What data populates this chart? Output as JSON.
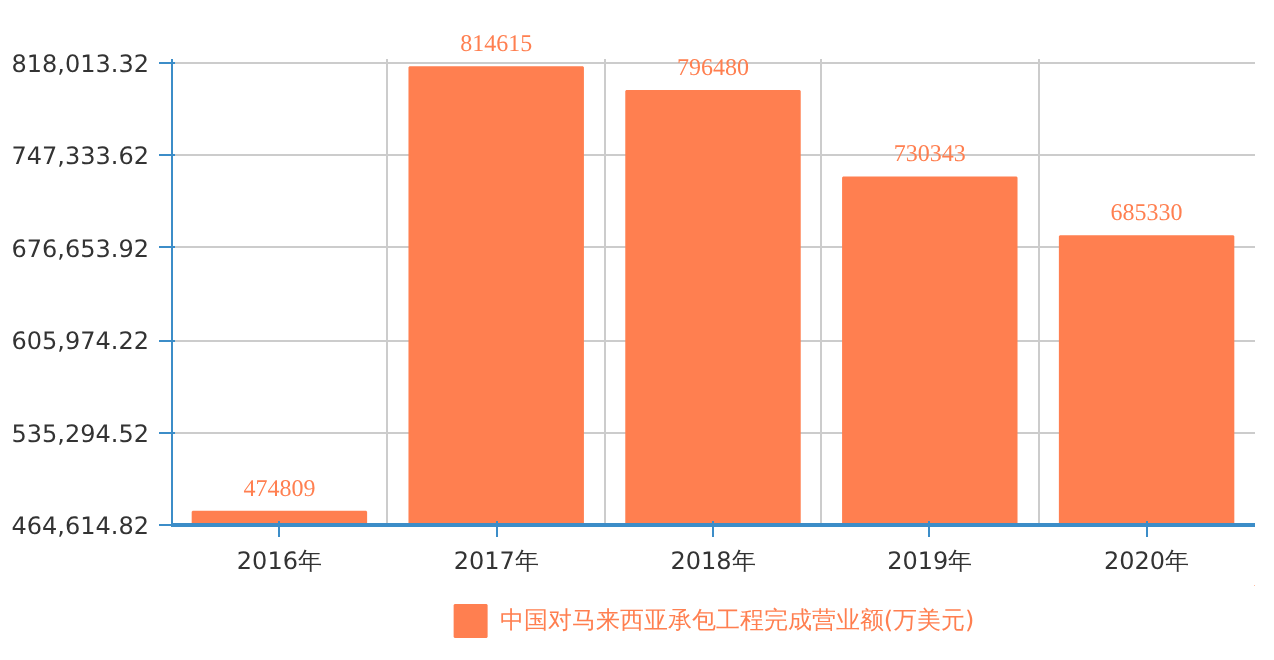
{
  "chart_data": {
    "type": "bar",
    "categories": [
      "2016年",
      "2017年",
      "2018年",
      "2019年",
      "2020年"
    ],
    "series": [
      {
        "name": "中国对马来西亚承包工程完成营业额(万美元)",
        "color": "#ff7f50",
        "values": [
          474809,
          814615,
          796480,
          730343,
          685330
        ]
      }
    ],
    "ylim": [
      464614.82,
      821000
    ],
    "yticks": [
      {
        "value": 464614.82,
        "label": "464,614.82"
      },
      {
        "value": 535294.52,
        "label": "535,294.52"
      },
      {
        "value": 605974.22,
        "label": "605,974.22"
      },
      {
        "value": 676653.92,
        "label": "676,653.92"
      },
      {
        "value": 747333.62,
        "label": "747,333.62"
      },
      {
        "value": 818013.32,
        "label": "818,013.32"
      }
    ],
    "data_labels": true,
    "grid": true,
    "legend": "bottom"
  }
}
